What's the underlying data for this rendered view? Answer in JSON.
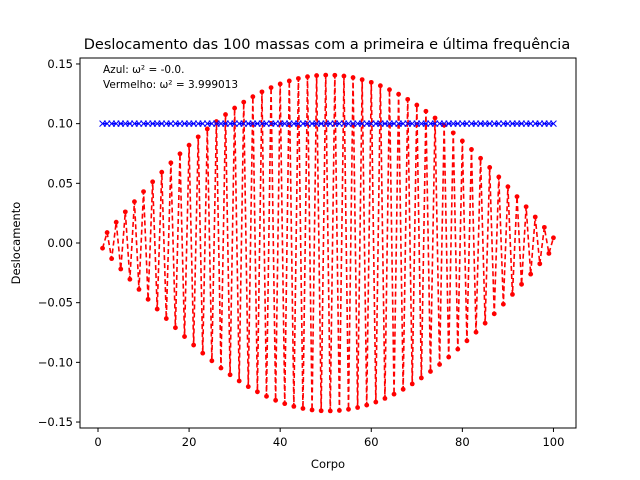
{
  "chart_data": {
    "type": "line",
    "title": "Deslocamento das 100 massas com a primeira e última frequência",
    "xlabel": "Corpo",
    "ylabel": "Deslocamento",
    "xlim": [
      -3.95,
      104.95
    ],
    "ylim": [
      -0.155,
      0.155
    ],
    "xticks": [
      0,
      20,
      40,
      60,
      80,
      100
    ],
    "yticks": [
      -0.15,
      -0.1,
      -0.05,
      0.0,
      0.05,
      0.1,
      0.15
    ],
    "ytick_labels": [
      "−0.15",
      "−0.10",
      "−0.05",
      "0.00",
      "0.05",
      "0.10",
      "0.15"
    ],
    "grid": false,
    "annotations": [
      "Azul: ω² = -0.0.",
      "Vermelho: ω² = 3.999013"
    ],
    "x": {
      "start": 1,
      "end": 100,
      "step": 1
    },
    "series": [
      {
        "color": "#0000ff",
        "marker": "x",
        "linestyle": "dashed",
        "values_constant": 0.1
      },
      {
        "color": "#ff0000",
        "marker": "o",
        "linestyle": "dashed",
        "formula": "y_n = (-1)^n * 0.1407 * sin(pi * n / 101)",
        "amplitude": 0.1407
      }
    ]
  }
}
